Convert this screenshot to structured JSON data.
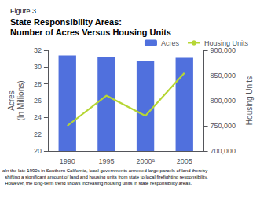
{
  "chart_data": {
    "type": "bar",
    "title": "State Responsibility Areas:\nNumber of Acres Versus Housing Units",
    "annotations": [
      "Figure 3",
      "aIn the late 1990s in Southern California, local governments annexed large parcels of land thereby\n  shifting a significant amount of land and housing units from state to local firefighting responsibility.\n  However, the long-term trend shows increasing housing units in state responsibility areas."
    ],
    "categories": [
      "1990",
      "1995",
      "2000ᵃ",
      "2005"
    ],
    "series": [
      {
        "name": "Acres",
        "type": "bar",
        "values": [
          31.4,
          31.2,
          30.7,
          31.1
        ]
      },
      {
        "name": "Housing Units",
        "type": "line",
        "axis": "y2",
        "values": [
          750000,
          810000,
          770000,
          855000
        ]
      }
    ],
    "ylabel": "Acres\n(In Millions)",
    "y2label": "Housing Units",
    "ylim": [
      20,
      32
    ],
    "yticks": [
      20,
      22,
      24,
      26,
      28,
      30,
      32
    ],
    "y2lim": [
      700000,
      900000
    ],
    "y2ticks": [
      {
        "value": 700000,
        "label": "700,000"
      },
      {
        "value": 750000,
        "label": "750,000"
      },
      {
        "value": 800000,
        "label": "800,000"
      },
      {
        "value": 850000,
        "label": "850,000"
      },
      {
        "value": 900000,
        "label": "900,000"
      }
    ],
    "legend": "upper right",
    "grid": false
  }
}
